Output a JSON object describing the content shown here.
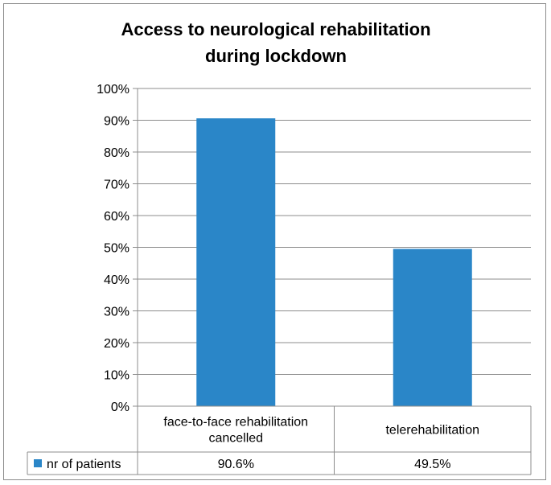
{
  "chart_data": {
    "type": "bar",
    "title_lines": [
      "Access to neurological rehabilitation",
      "during lockdown"
    ],
    "categories": [
      [
        "face-to-face rehabilitation",
        "cancelled"
      ],
      [
        "telerehabilitation"
      ]
    ],
    "series": [
      {
        "name": "nr of patients",
        "values": [
          90.6,
          49.5
        ],
        "color": "#2a86c8"
      }
    ],
    "table_values": [
      "90.6%",
      "49.5%"
    ],
    "yticks": [
      "0%",
      "10%",
      "20%",
      "30%",
      "40%",
      "50%",
      "60%",
      "70%",
      "80%",
      "90%",
      "100%"
    ],
    "ylim": [
      0,
      100
    ],
    "grid": true,
    "legend": "data-table"
  }
}
